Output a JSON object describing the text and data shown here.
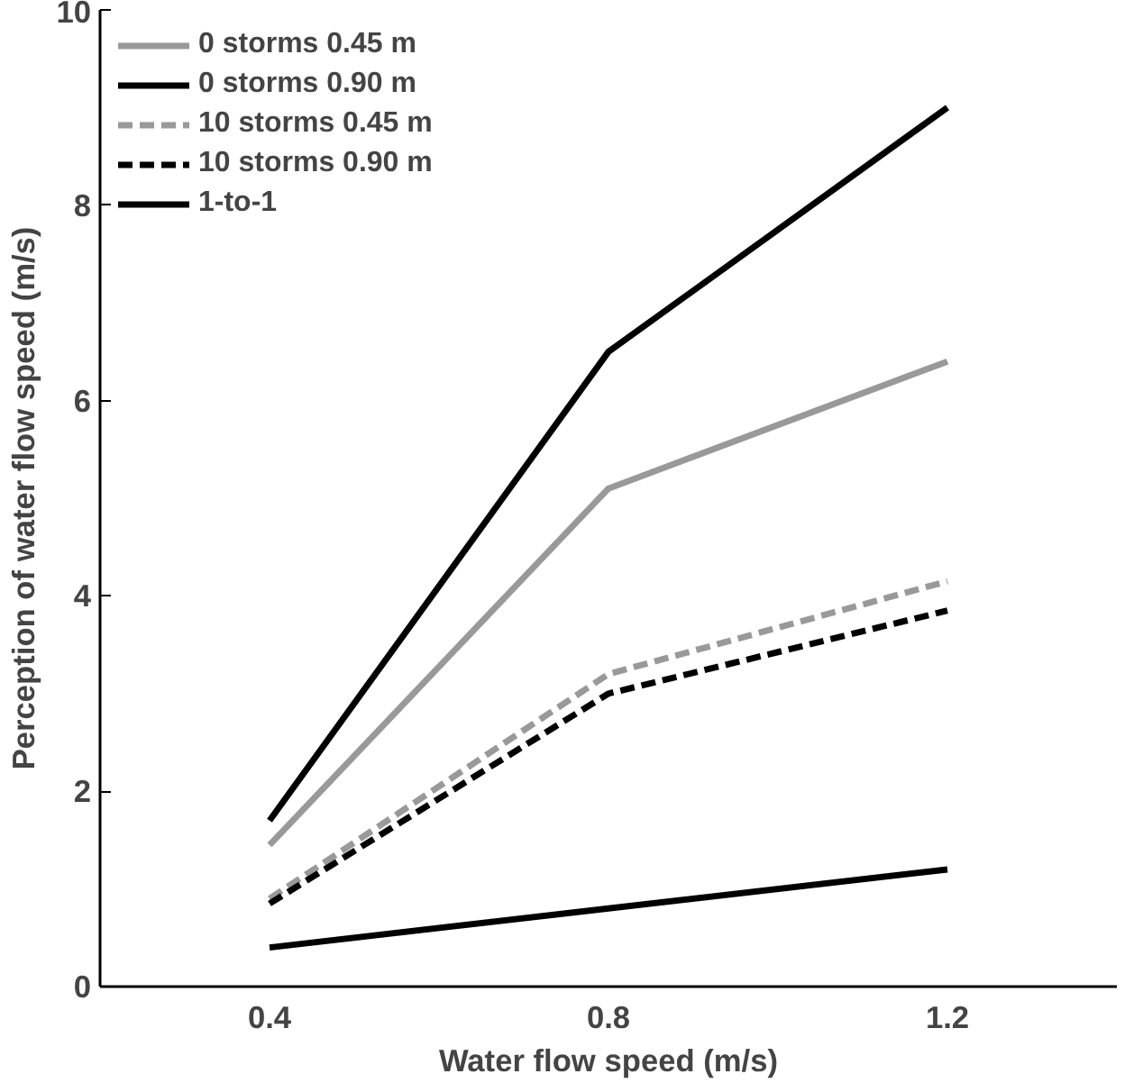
{
  "chart_data": {
    "type": "line",
    "xlabel": "Water flow speed (m/s)",
    "ylabel": "Perception of water flow speed (m/s)",
    "categories": [
      "0.4",
      "0.8",
      "1.2"
    ],
    "ylim": [
      0,
      10
    ],
    "yticks": [
      0,
      2,
      4,
      6,
      8,
      10
    ],
    "grid": false,
    "legend": "top left",
    "marker": "none",
    "series": [
      {
        "name": "0 storms 0.45 m",
        "color": "#999999",
        "line_style": "solid",
        "values": [
          1.45,
          5.1,
          6.4
        ]
      },
      {
        "name": "0 storms 0.90 m",
        "color": "#000000",
        "line_style": "solid",
        "values": [
          1.7,
          6.5,
          9.0
        ]
      },
      {
        "name": "10 storms 0.45 m",
        "color": "#999999",
        "line_style": "dashed",
        "values": [
          0.9,
          3.2,
          4.15
        ]
      },
      {
        "name": "10 storms 0.90 m",
        "color": "#000000",
        "line_style": "dashed",
        "values": [
          0.85,
          3.0,
          3.85
        ]
      },
      {
        "name": "1-to-1",
        "color": "#000000",
        "line_style": "solid",
        "values": [
          0.4,
          0.8,
          1.2
        ]
      }
    ]
  }
}
